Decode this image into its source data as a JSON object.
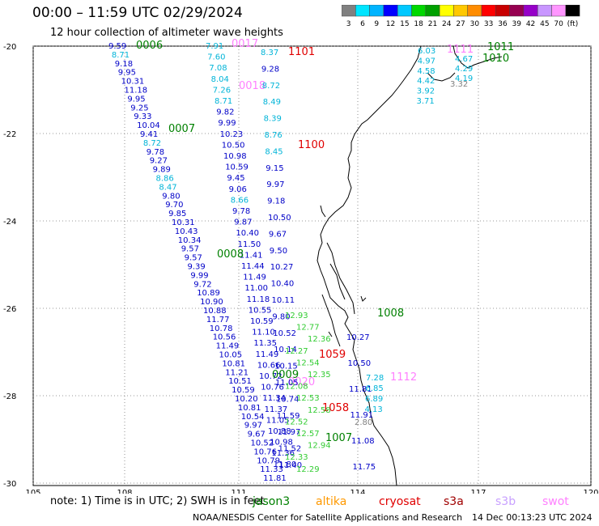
{
  "header": {
    "title": "00:00 – 11:59 UTC 02/29/2024",
    "subtitle": "12 hour collection of altimeter wave heights"
  },
  "legend": {
    "colors": [
      "#808080",
      "#00e5ff",
      "#00b4ff",
      "#0000ff",
      "#00c8ff",
      "#00d800",
      "#00a000",
      "#ffff00",
      "#ffc800",
      "#ff8c00",
      "#ff0000",
      "#c80000",
      "#960050",
      "#9600c8",
      "#c896ff",
      "#ff96ff",
      "#000000"
    ],
    "labels": [
      "3",
      "6",
      "9",
      "12",
      "15",
      "18",
      "21",
      "24",
      "27",
      "30",
      "33",
      "36",
      "39",
      "42",
      "45",
      "70",
      "(ft)"
    ]
  },
  "map": {
    "lat_ticks": [
      "-20",
      "-22",
      "-24",
      "-26",
      "-28",
      "-30"
    ],
    "lon_ticks": [
      "105",
      "108",
      "111",
      "114",
      "117",
      "120"
    ]
  },
  "passes": [
    {
      "label": "0006",
      "color": "#008000",
      "values": [
        "9.59",
        "8.71",
        "9.18",
        "9.95",
        "10.31",
        "11.18",
        "9.95",
        "9.25",
        "9.33",
        "10.04",
        "9.41",
        "8.72",
        "9.78",
        "9.27",
        "9.89",
        "8.86",
        "8.47",
        "9.80",
        "9.70",
        "9.85",
        "10.31",
        "10.43",
        "10.34",
        "9.57",
        "9.57",
        "9.39",
        "9.99",
        "9.72",
        "10.89",
        "10.90",
        "10.88",
        "11.77",
        "10.78",
        "10.56",
        "11.49",
        "10.05",
        "10.81",
        "11.21",
        "10.51",
        "10.59",
        "10.20",
        "10.81",
        "10.54",
        "9.97",
        "9.67",
        "10.52",
        "10.76",
        "10.79",
        "11.33",
        "11.81"
      ]
    },
    {
      "label": "0007",
      "color": "#008000",
      "values": []
    },
    {
      "label": "0017",
      "color": "#ff80ff",
      "values": [
        "7.91",
        "7.60",
        "7.08",
        "8.04",
        "7.26",
        "8.71",
        "9.82",
        "9.99",
        "10.23",
        "10.50",
        "10.98",
        "10.59",
        "9.45",
        "9.06",
        "8.66",
        "9.78",
        "9.87",
        "10.40",
        "11.50",
        "11.41",
        "11.44",
        "11.49",
        "11.00",
        "11.18",
        "10.55",
        "10.59",
        "11.10",
        "11.35",
        "11.49",
        "10.66",
        "10.72",
        "10.76",
        "11.34",
        "11.37",
        "11.05",
        "10.88",
        "10.98",
        "11.36",
        "11.80"
      ]
    },
    {
      "label": "0018",
      "color": "#ff80ff",
      "values": []
    },
    {
      "label": "0008",
      "color": "#008000",
      "values": []
    },
    {
      "label": "0009",
      "color": "#008000",
      "values": []
    },
    {
      "label": "0020",
      "color": "#ff80ff",
      "values": []
    },
    {
      "label": "1101",
      "color": "#e00000",
      "values": [
        "8.37",
        "9.28",
        "8.72",
        "8.49",
        "8.39",
        "8.76",
        "8.45",
        "9.15",
        "9.97",
        "9.18",
        "10.50",
        "9.67",
        "9.50",
        "10.27",
        "10.40",
        "10.11",
        "9.80",
        "10.52",
        "10.14",
        "10.15",
        "11.05",
        "10.74",
        "11.59",
        "11.97",
        "11.52",
        "11.40"
      ]
    },
    {
      "label": "1100",
      "color": "#e00000",
      "values": []
    },
    {
      "label": "1011",
      "color": "#008000",
      "values": [
        "6.03",
        "4.97",
        "4.58",
        "4.42",
        "3.92",
        "3.71"
      ]
    },
    {
      "label": "1010",
      "color": "#008000",
      "values": []
    },
    {
      "label": "1111",
      "color": "#ff80ff",
      "values": [
        "4.67",
        "4.29",
        "4.19"
      ]
    },
    {
      "label": "1008",
      "color": "#008000",
      "values": [
        "10.27",
        "10.50",
        "11.81",
        "11.91",
        "11.08",
        "11.75"
      ]
    },
    {
      "label": "1059",
      "color": "#e00000",
      "values": []
    },
    {
      "label": "1058",
      "color": "#e00000",
      "values": []
    },
    {
      "label": "1112",
      "color": "#ff80ff",
      "values": [
        "7.28",
        "6.85",
        "6.89",
        "4.13"
      ]
    },
    {
      "label": "1007",
      "color": "#008000",
      "values": []
    }
  ],
  "green_values": [
    "12.93",
    "12.77",
    "12.36",
    "12.27",
    "12.54",
    "12.35",
    "12.08",
    "12.53",
    "12.58",
    "12.52",
    "12.57",
    "12.94",
    "12.33",
    "12.29"
  ],
  "gray_values": [
    "3.32",
    "2.80"
  ],
  "footer": {
    "note": "note:  1) Time is in UTC; 2) SWH is in feet",
    "satellites": [
      {
        "name": "jason3",
        "color": "#008000"
      },
      {
        "name": "altika",
        "color": "#ff9900"
      },
      {
        "name": "cryosat",
        "color": "#e00000"
      },
      {
        "name": "s3a",
        "color": "#a00000"
      },
      {
        "name": "s3b",
        "color": "#c8a0ff"
      },
      {
        "name": "swot",
        "color": "#ff80ff"
      }
    ],
    "credit": "NOAA/NESDIS Center for Satellite Applications and Research",
    "generated": "14 Dec 00:13:23 UTC 2024"
  }
}
